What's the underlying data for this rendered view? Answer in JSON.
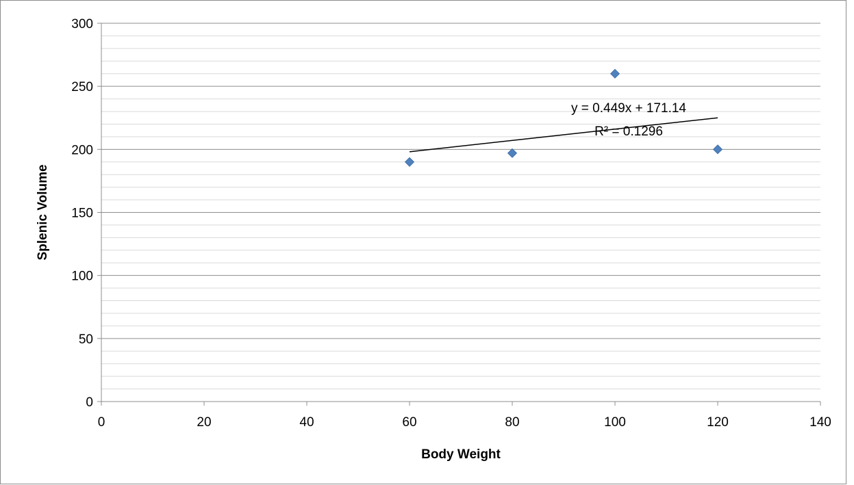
{
  "chart_data": {
    "type": "scatter",
    "title": "",
    "xlabel": "Body Weight",
    "ylabel": "Splenic Volume",
    "xlim": [
      0,
      140
    ],
    "ylim": [
      0,
      300
    ],
    "x_ticks": [
      0,
      20,
      40,
      60,
      80,
      100,
      120,
      140
    ],
    "y_ticks": [
      0,
      50,
      100,
      150,
      200,
      250,
      300
    ],
    "y_minor_step": 10,
    "grid": {
      "major": true,
      "minor": true,
      "vertical": false
    },
    "legend": "none",
    "series": [
      {
        "x": [
          60,
          80,
          100,
          120
        ],
        "y": [
          190,
          197,
          260,
          200
        ],
        "marker": "diamond",
        "color": "#4f81bd"
      }
    ],
    "trendline": {
      "type": "linear",
      "slope": 0.449,
      "intercept": 171.14,
      "x_range": [
        60,
        120
      ],
      "equation_label": "y = 0.449x + 171.14",
      "r2_label": "R² = 0.1296",
      "color": "#000000"
    }
  }
}
